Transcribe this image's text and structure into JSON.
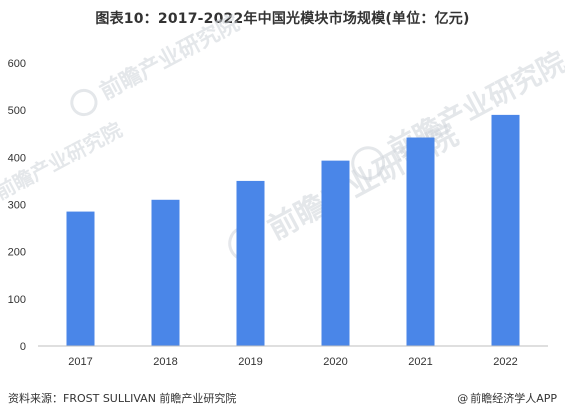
{
  "title": "图表10：2017-2022年中国光模块市场规模(单位：亿元)",
  "watermark": {
    "brand": "前瞻产业研究院"
  },
  "footer": {
    "source": "资料来源：FROST  SULLIVAN 前瞻产业研究院",
    "credit_icon": "@",
    "credit": "前瞻经济学人APP"
  },
  "colors": {
    "bar": "#4a86e8",
    "axis": "#bfbfbf",
    "text": "#333333"
  },
  "chart_data": {
    "type": "bar",
    "title": "图表10：2017-2022年中国光模块市场规模(单位：亿元)",
    "categories": [
      "2017",
      "2018",
      "2019",
      "2020",
      "2021",
      "2022"
    ],
    "values": [
      285,
      310,
      350,
      393,
      442,
      490
    ],
    "xlabel": "",
    "ylabel": "",
    "ylim": [
      0,
      600
    ],
    "yticks": [
      0,
      100,
      200,
      300,
      400,
      500,
      600
    ],
    "grid": false,
    "legend": "none"
  }
}
